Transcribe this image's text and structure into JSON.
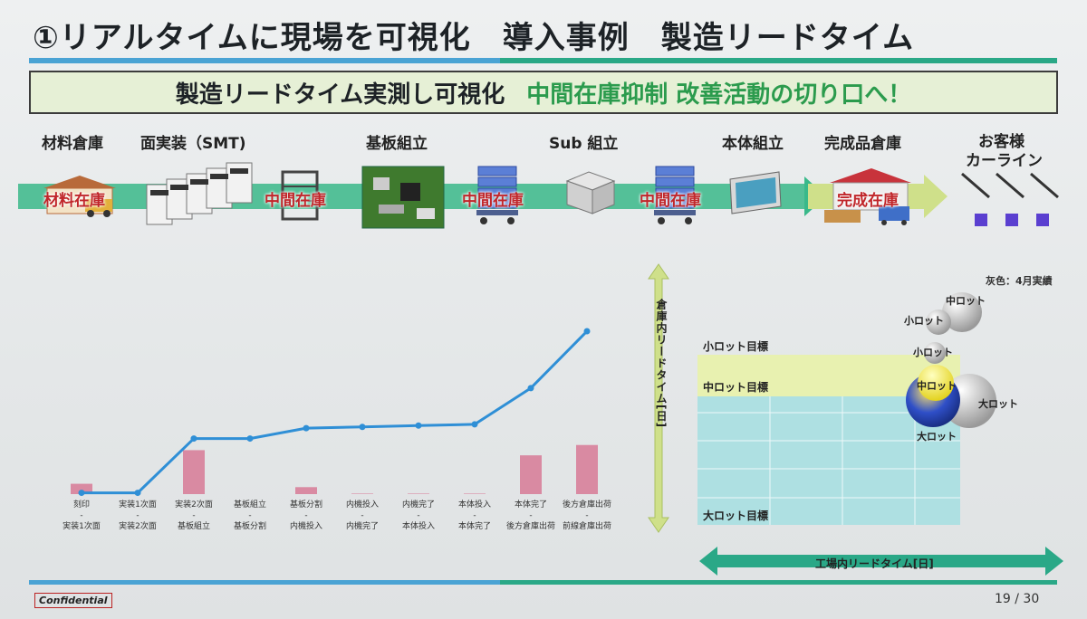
{
  "slide": {
    "title": "①リアルタイムに現場を可視化　導入事例　製造リードタイム",
    "banner_main": "製造リードタイム実測し可視化",
    "banner_highlight": "中間在庫抑制 改善活動の切り口へ！",
    "confidential": "Confidential",
    "page": "19 / 30"
  },
  "process": {
    "stages": [
      "材料倉庫",
      "面実装（SMT)",
      "基板組立",
      "Sub 組立",
      "本体組立",
      "完成品倉庫"
    ],
    "customer": [
      "お客様",
      "カーライン"
    ],
    "inventory_labels": [
      "材料在庫",
      "中間在庫",
      "中間在庫",
      "中間在庫",
      "完成在庫"
    ]
  },
  "colors": {
    "accent_blue": "#4aa3d4",
    "accent_green": "#2aa887",
    "banner_green": "#2b9b4d",
    "inventory_red": "#c0262a",
    "line": "#2f8fd6",
    "bar": "#d98aa2"
  },
  "chart_data": [
    {
      "type": "line",
      "categories_top": [
        "刻印",
        "実装1次面",
        "実装2次面",
        "基板組立",
        "基板分割",
        "内機投入",
        "内機完了",
        "本体投入",
        "本体完了",
        "後方倉庫出荷"
      ],
      "categories_sep": [
        "-",
        "-",
        "-",
        "-",
        "-",
        "-",
        "-",
        "-",
        "-",
        "-"
      ],
      "categories_bottom": [
        "実装1次面",
        "実装2次面",
        "基板組立",
        "基板分割",
        "内機投入",
        "内機完了",
        "本体投入",
        "本体完了",
        "後方倉庫出荷",
        "前線倉庫出荷"
      ],
      "series": [
        {
          "type": "line",
          "values": [
            0.5,
            0.5,
            21.5,
            21.5,
            25.5,
            26,
            26.5,
            27,
            41,
            63
          ]
        },
        {
          "type": "bar",
          "values": [
            4,
            0,
            17,
            0,
            2.7,
            0.2,
            0.2,
            0.2,
            15,
            19
          ]
        }
      ],
      "ylim": [
        0,
        70
      ]
    },
    {
      "type": "scatter",
      "ylabel": "倉庫内リードタイム[日]",
      "xlabel": "工場内リードタイム[日]",
      "note": "灰色：4月実績",
      "targets": [
        "小ロット目標",
        "中ロット目標",
        "大ロット目標"
      ],
      "bubbles": [
        {
          "name": "中ロット",
          "status": "actual"
        },
        {
          "name": "小ロット",
          "status": "actual"
        },
        {
          "name": "小ロット",
          "status": "target"
        },
        {
          "name": "中ロット",
          "status": "target"
        },
        {
          "name": "大ロット",
          "status": "actual"
        },
        {
          "name": "大ロット",
          "status": "target"
        }
      ]
    }
  ]
}
